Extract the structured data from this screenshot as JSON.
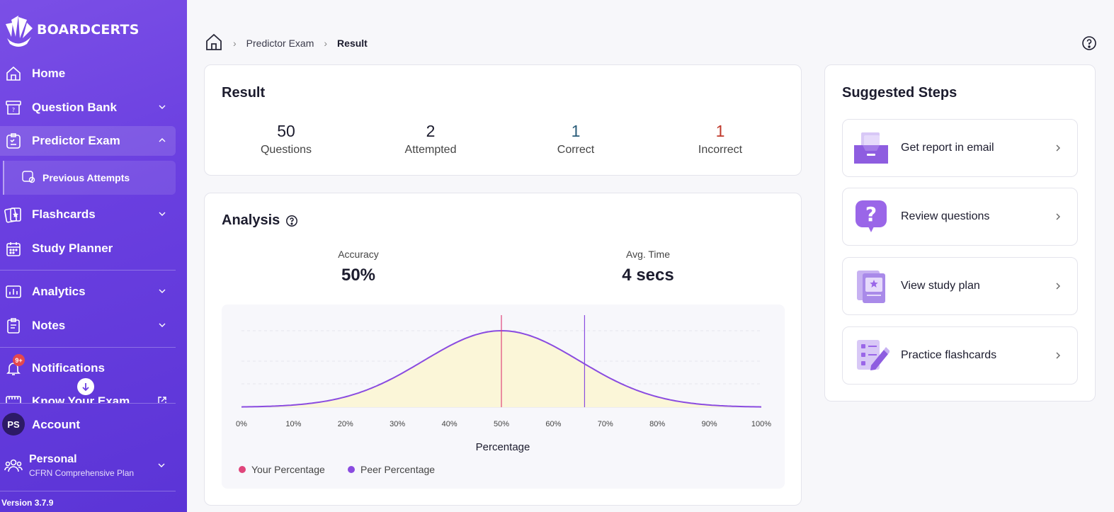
{
  "app": {
    "brand": "BOARDCERTS",
    "version": "Version 3.7.9"
  },
  "sidebar": {
    "items": [
      {
        "label": "Home"
      },
      {
        "label": "Question Bank"
      },
      {
        "label": "Predictor Exam"
      },
      {
        "label": "Previous Attempts"
      },
      {
        "label": "Flashcards"
      },
      {
        "label": "Study Planner"
      },
      {
        "label": "Analytics"
      },
      {
        "label": "Notes"
      },
      {
        "label": "Notifications",
        "badge": "9+"
      },
      {
        "label": "Know Your Exam"
      }
    ],
    "account": {
      "initials": "PS",
      "label": "Account"
    },
    "plan": {
      "title": "Personal",
      "subtitle": "CFRN Comprehensive Plan"
    }
  },
  "breadcrumb": {
    "parent": "Predictor Exam",
    "current": "Result"
  },
  "result": {
    "title": "Result",
    "stats": [
      {
        "value": "50",
        "label": "Questions",
        "color": "#1c1c2e"
      },
      {
        "value": "2",
        "label": "Attempted",
        "color": "#1c1c2e"
      },
      {
        "value": "1",
        "label": "Correct",
        "color": "#2b5d7a"
      },
      {
        "value": "1",
        "label": "Incorrect",
        "color": "#c0392b"
      }
    ]
  },
  "analysis": {
    "title": "Analysis",
    "accuracy": {
      "label": "Accuracy",
      "value": "50%"
    },
    "avg_time": {
      "label": "Avg. Time",
      "value": "4 secs"
    }
  },
  "chart_data": {
    "type": "area",
    "xlabel": "Percentage",
    "x_ticks": [
      "0%",
      "10%",
      "20%",
      "30%",
      "40%",
      "50%",
      "60%",
      "70%",
      "80%",
      "90%",
      "100%"
    ],
    "xlim": [
      0,
      100
    ],
    "distribution": {
      "mean": 50,
      "std": 15
    },
    "series": [
      {
        "name": "Your Percentage",
        "type": "vline",
        "x": 50,
        "color": "#e0457b"
      },
      {
        "name": "Peer Percentage",
        "type": "vline",
        "x": 66,
        "color": "#8a4be0"
      }
    ],
    "curve_color": "#8a4be0",
    "fill_color": "#fbf6d8",
    "legend": [
      "Your Percentage",
      "Peer Percentage"
    ],
    "legend_position": "bottom-left",
    "grid": true
  },
  "steps": {
    "title": "Suggested Steps",
    "items": [
      {
        "label": "Get report in email"
      },
      {
        "label": "Review questions"
      },
      {
        "label": "View study plan"
      },
      {
        "label": "Practice flashcards"
      }
    ]
  }
}
